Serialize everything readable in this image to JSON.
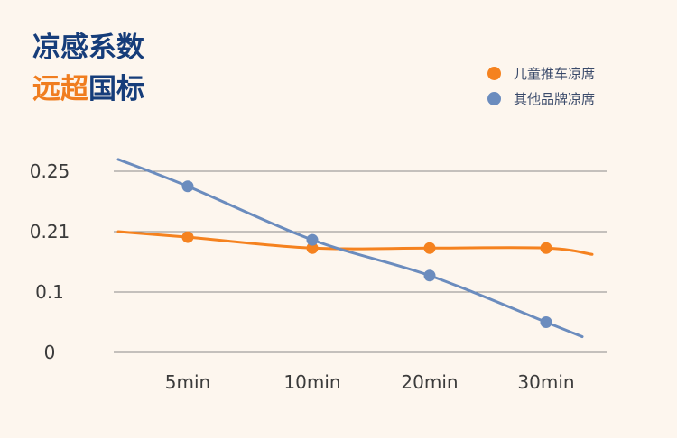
{
  "title": {
    "line1": "凉感系数",
    "line2_accent": "远超",
    "line2_rest": "国标"
  },
  "colors": {
    "series_orange": "#f5821f",
    "series_blue": "#6b8cbe",
    "title_blue": "#163d7a",
    "title_orange": "#f07d1f"
  },
  "chart_data": {
    "type": "line",
    "categories": [
      "5min",
      "10min",
      "20min",
      "30min"
    ],
    "y_tick_labels": [
      "0.25",
      "0.21",
      "0.1",
      "0"
    ],
    "grid": true,
    "legend_position": "top-right",
    "series": [
      {
        "name": "儿童推车凉席",
        "color": "#f5821f",
        "values": [
          0.2,
          0.18,
          0.18,
          0.18
        ]
      },
      {
        "name": "其他品牌凉席",
        "color": "#6b8cbe",
        "values": [
          0.24,
          0.195,
          0.13,
          0.05
        ]
      }
    ]
  }
}
